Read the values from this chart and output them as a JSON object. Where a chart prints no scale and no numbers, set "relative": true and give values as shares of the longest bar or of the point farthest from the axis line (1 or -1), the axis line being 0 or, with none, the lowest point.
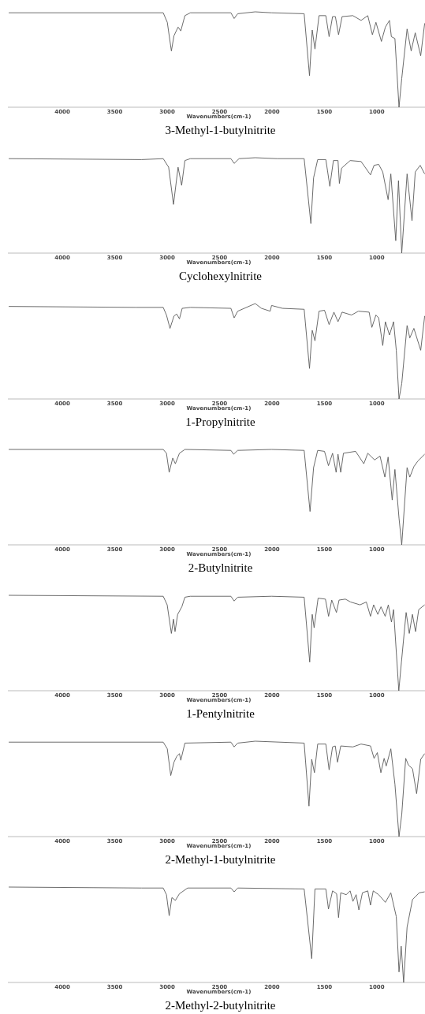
{
  "chart_data": [
    {
      "type": "line",
      "title": "3-Methyl-1-butylnitrite",
      "xlabel": "Wavenumbers(cm-1)",
      "relative": true,
      "xlim": [
        4520,
        540
      ],
      "xticks": [
        4000,
        3500,
        3000,
        2500,
        2000,
        1500,
        1000
      ],
      "color": "#5a5a5a",
      "x": [
        4512,
        3038,
        2999,
        2960,
        2935,
        2896,
        2870,
        2831,
        2779,
        2392,
        2361,
        2327,
        2160,
        2004,
        1693,
        1642,
        1616,
        1590,
        1551,
        1486,
        1455,
        1422,
        1395,
        1365,
        1331,
        1228,
        1150,
        1086,
        1042,
        1008,
        956,
        918,
        879,
        861,
        827,
        788,
        762,
        711,
        672,
        633,
        581,
        543
      ],
      "values": [
        0.99,
        0.99,
        0.89,
        0.59,
        0.75,
        0.84,
        0.8,
        0.96,
        0.99,
        0.99,
        0.93,
        0.98,
        1,
        0.99,
        0.98,
        0.33,
        0.81,
        0.61,
        0.96,
        0.96,
        0.74,
        0.95,
        0.95,
        0.76,
        0.95,
        0.96,
        0.91,
        0.96,
        0.76,
        0.89,
        0.69,
        0.84,
        0.91,
        0.74,
        0.72,
        0,
        0.3,
        0.82,
        0.59,
        0.78,
        0.54,
        0.88
      ]
    },
    {
      "type": "line",
      "title": "Cyclohexylnitrite",
      "xlabel": "Wavenumbers(cm-1)",
      "relative": true,
      "xlim": [
        4520,
        540
      ],
      "xticks": [
        4000,
        3500,
        3000,
        2500,
        2000,
        1500,
        1000
      ],
      "color": "#5a5a5a",
      "x": [
        4512,
        3245,
        3038,
        2986,
        2940,
        2896,
        2862,
        2831,
        2779,
        2392,
        2361,
        2314,
        2160,
        1952,
        1693,
        1629,
        1603,
        1564,
        1486,
        1448,
        1414,
        1370,
        1357,
        1336,
        1254,
        1150,
        1060,
        1026,
        982,
        943,
        892,
        866,
        819,
        793,
        762,
        711,
        664,
        633,
        586,
        543
      ],
      "values": [
        0.99,
        0.98,
        0.99,
        0.9,
        0.51,
        0.9,
        0.71,
        0.97,
        0.99,
        0.99,
        0.94,
        0.99,
        1,
        0.99,
        0.99,
        0.31,
        0.79,
        0.98,
        0.98,
        0.7,
        0.97,
        0.97,
        0.73,
        0.89,
        0.97,
        0.96,
        0.82,
        0.92,
        0.93,
        0.85,
        0.56,
        0.83,
        0.13,
        0.76,
        0,
        0.83,
        0.34,
        0.85,
        0.92,
        0.83
      ]
    },
    {
      "type": "line",
      "title": "1-Propylnitrite",
      "xlabel": "Wavenumbers(cm-1)",
      "relative": true,
      "xlim": [
        4520,
        540
      ],
      "xticks": [
        4000,
        3500,
        3000,
        2500,
        2000,
        1500,
        1000
      ],
      "color": "#5a5a5a",
      "x": [
        4512,
        3297,
        3038,
        3007,
        2973,
        2935,
        2909,
        2883,
        2857,
        2779,
        2392,
        2361,
        2327,
        2160,
        2100,
        2017,
        2004,
        1900,
        1693,
        1642,
        1616,
        1590,
        1551,
        1499,
        1455,
        1409,
        1370,
        1331,
        1241,
        1176,
        1073,
        1047,
        1008,
        982,
        943,
        918,
        879,
        840,
        814,
        788,
        762,
        711,
        685,
        646,
        581,
        543
      ],
      "values": [
        0.97,
        0.96,
        0.96,
        0.88,
        0.74,
        0.87,
        0.89,
        0.84,
        0.95,
        0.96,
        0.95,
        0.85,
        0.92,
        1,
        0.95,
        0.92,
        0.98,
        0.95,
        0.94,
        0.32,
        0.72,
        0.61,
        0.92,
        0.93,
        0.78,
        0.91,
        0.81,
        0.91,
        0.88,
        0.92,
        0.91,
        0.75,
        0.88,
        0.85,
        0.56,
        0.81,
        0.67,
        0.81,
        0.51,
        0,
        0.16,
        0.77,
        0.64,
        0.74,
        0.51,
        0.87
      ]
    },
    {
      "type": "line",
      "title": "2-Butylnitrite",
      "xlabel": "Wavenumbers(cm-1)",
      "relative": true,
      "xlim": [
        4520,
        540
      ],
      "xticks": [
        4000,
        3500,
        3000,
        2500,
        2000,
        1500,
        1000
      ],
      "color": "#5a5a5a",
      "x": [
        4512,
        3038,
        3007,
        2981,
        2947,
        2922,
        2883,
        2831,
        2392,
        2366,
        2327,
        2004,
        1693,
        1637,
        1603,
        1564,
        1499,
        1461,
        1422,
        1388,
        1370,
        1344,
        1318,
        1202,
        1124,
        1086,
        1021,
        969,
        923,
        892,
        853,
        827,
        788,
        762,
        711,
        685,
        646,
        607,
        543
      ],
      "values": [
        1,
        1,
        0.96,
        0.76,
        0.91,
        0.85,
        0.96,
        1,
        0.99,
        0.95,
        0.99,
        1,
        0.99,
        0.35,
        0.81,
        0.99,
        0.98,
        0.83,
        0.96,
        0.76,
        0.95,
        0.76,
        0.96,
        0.98,
        0.85,
        0.96,
        0.89,
        0.93,
        0.71,
        0.92,
        0.47,
        0.79,
        0.28,
        0,
        0.81,
        0.71,
        0.82,
        0.88,
        0.95
      ]
    },
    {
      "type": "line",
      "title": "1-Pentylnitrite",
      "xlabel": "Wavenumbers(cm-1)",
      "relative": true,
      "xlim": [
        4520,
        540
      ],
      "xticks": [
        4000,
        3500,
        3000,
        2500,
        2000,
        1500,
        1000
      ],
      "color": "#5a5a5a",
      "x": [
        4512,
        3038,
        3000,
        2960,
        2940,
        2925,
        2900,
        2860,
        2831,
        2779,
        2392,
        2361,
        2327,
        2004,
        1693,
        1640,
        1616,
        1598,
        1560,
        1490,
        1460,
        1430,
        1385,
        1360,
        1300,
        1250,
        1160,
        1100,
        1060,
        1030,
        990,
        960,
        920,
        890,
        860,
        840,
        790,
        765,
        720,
        690,
        660,
        630,
        600,
        543
      ],
      "values": [
        1,
        0.99,
        0.9,
        0.6,
        0.75,
        0.62,
        0.8,
        0.88,
        0.98,
        0.99,
        0.99,
        0.94,
        0.98,
        0.99,
        0.98,
        0.3,
        0.8,
        0.66,
        0.97,
        0.96,
        0.78,
        0.95,
        0.82,
        0.95,
        0.96,
        0.93,
        0.9,
        0.93,
        0.78,
        0.9,
        0.8,
        0.88,
        0.78,
        0.9,
        0.72,
        0.85,
        0,
        0.3,
        0.82,
        0.6,
        0.8,
        0.62,
        0.85,
        0.9
      ]
    },
    {
      "type": "line",
      "title": "2-Methyl-1-butylnitrite",
      "xlabel": "Wavenumbers(cm-1)",
      "relative": true,
      "xlim": [
        4520,
        540
      ],
      "xticks": [
        4000,
        3500,
        3000,
        2500,
        2000,
        1500,
        1000
      ],
      "color": "#5a5a5a",
      "x": [
        4512,
        3038,
        2999,
        2966,
        2935,
        2909,
        2883,
        2870,
        2831,
        2392,
        2361,
        2327,
        2160,
        1693,
        1647,
        1621,
        1595,
        1564,
        1486,
        1455,
        1422,
        1396,
        1375,
        1344,
        1228,
        1150,
        1060,
        1026,
        995,
        961,
        930,
        910,
        866,
        827,
        788,
        762,
        724,
        698,
        659,
        620,
        581,
        543
      ],
      "values": [
        0.99,
        0.99,
        0.92,
        0.64,
        0.78,
        0.84,
        0.87,
        0.8,
        0.98,
        0.99,
        0.94,
        0.98,
        1,
        0.98,
        0.32,
        0.81,
        0.67,
        0.97,
        0.97,
        0.7,
        0.94,
        0.95,
        0.78,
        0.95,
        0.94,
        0.97,
        0.95,
        0.82,
        0.88,
        0.67,
        0.82,
        0.74,
        0.92,
        0.55,
        0,
        0.23,
        0.82,
        0.75,
        0.71,
        0.45,
        0.81,
        0.87
      ]
    },
    {
      "type": "line",
      "title": "2-Methyl-2-butylnitrite",
      "xlabel": "Wavenumbers(cm-1)",
      "relative": true,
      "xlim": [
        4520,
        540
      ],
      "xticks": [
        4000,
        3500,
        3000,
        2500,
        2000,
        1500,
        1000
      ],
      "color": "#5a5a5a",
      "x": [
        4512,
        3245,
        3038,
        3007,
        2981,
        2955,
        2922,
        2883,
        2805,
        2392,
        2361,
        2327,
        1693,
        1621,
        1590,
        1486,
        1461,
        1422,
        1383,
        1365,
        1344,
        1292,
        1254,
        1228,
        1197,
        1171,
        1137,
        1086,
        1060,
        1034,
        982,
        918,
        866,
        814,
        788,
        767,
        744,
        711,
        659,
        594,
        543
      ],
      "values": [
        1,
        0.99,
        0.99,
        0.92,
        0.7,
        0.89,
        0.86,
        0.93,
        0.99,
        0.99,
        0.95,
        0.99,
        0.98,
        0.25,
        0.98,
        0.98,
        0.77,
        0.96,
        0.93,
        0.68,
        0.94,
        0.92,
        0.96,
        0.85,
        0.92,
        0.76,
        0.94,
        0.96,
        0.81,
        0.96,
        0.92,
        0.84,
        0.94,
        0.69,
        0.11,
        0.38,
        0,
        0.58,
        0.87,
        0.94,
        0.95
      ]
    }
  ]
}
